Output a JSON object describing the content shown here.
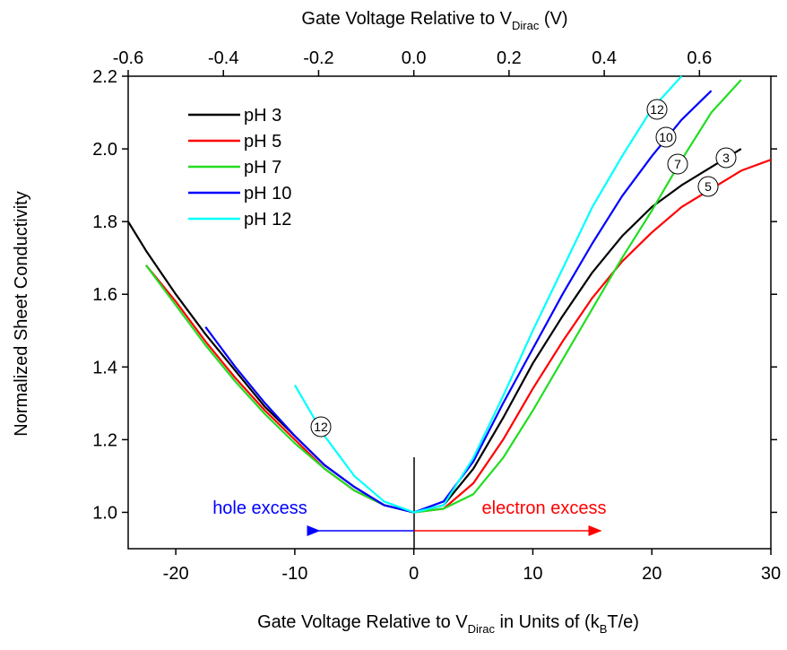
{
  "chart_data": {
    "type": "line",
    "x_label": [
      "Gate Voltage Relative to V",
      "Dirac",
      " in Units of (k",
      "B",
      "T/e)"
    ],
    "x2_label": [
      "Gate Voltage Relative to V",
      "Dirac",
      " (V)"
    ],
    "y_label": "Normalized Sheet Conductivity",
    "x": [
      -24,
      -22.5,
      -20,
      -17.5,
      -15,
      -12.5,
      -10,
      -7.5,
      -5,
      -2.5,
      0,
      2.5,
      5,
      7.5,
      10,
      12.5,
      15,
      17.5,
      20,
      22.5,
      25,
      27.5,
      30
    ],
    "series": [
      {
        "name": "pH 3",
        "color": "#000000",
        "values": [
          1.8,
          1.72,
          1.6,
          1.49,
          1.39,
          1.29,
          1.21,
          1.13,
          1.07,
          1.02,
          1.0,
          1.02,
          1.12,
          1.26,
          1.41,
          1.54,
          1.66,
          1.76,
          1.84,
          1.9,
          1.95,
          2.0,
          null
        ]
      },
      {
        "name": "pH 5",
        "color": "#ff0000",
        "values": [
          null,
          1.68,
          1.58,
          1.47,
          1.37,
          1.28,
          1.2,
          1.12,
          1.06,
          1.02,
          1.0,
          1.01,
          1.08,
          1.2,
          1.34,
          1.47,
          1.59,
          1.69,
          1.77,
          1.84,
          1.89,
          1.94,
          1.97
        ]
      },
      {
        "name": "pH 7",
        "color": "#22dd22",
        "values": [
          null,
          1.68,
          1.57,
          1.46,
          1.36,
          1.27,
          1.19,
          1.12,
          1.06,
          1.02,
          1.0,
          1.01,
          1.05,
          1.15,
          1.28,
          1.42,
          1.56,
          1.7,
          1.83,
          1.97,
          2.1,
          2.19,
          null
        ]
      },
      {
        "name": "pH 10",
        "color": "#0000ff",
        "values": [
          null,
          null,
          null,
          1.51,
          1.4,
          1.3,
          1.21,
          1.13,
          1.07,
          1.02,
          1.0,
          1.03,
          1.14,
          1.3,
          1.45,
          1.6,
          1.74,
          1.87,
          1.98,
          2.08,
          2.16,
          null,
          null
        ]
      },
      {
        "name": "pH 12",
        "color": "#00ffff",
        "values": [
          null,
          null,
          null,
          null,
          null,
          null,
          1.35,
          1.21,
          1.1,
          1.03,
          1.0,
          1.02,
          1.15,
          1.32,
          1.5,
          1.67,
          1.84,
          1.98,
          2.11,
          2.2,
          null,
          null,
          null
        ]
      }
    ],
    "xlim": [
      -24,
      30
    ],
    "xticks": [
      -20,
      -10,
      0,
      10,
      20,
      30
    ],
    "x2lim": [
      -0.6,
      0.75
    ],
    "x2ticks": [
      -0.6,
      -0.4,
      -0.2,
      {
        "value": 0,
        "label": "0.0"
      },
      0.2,
      0.4,
      0.6
    ],
    "ylim": [
      0.9,
      2.2
    ],
    "yticks": [
      {
        "value": 1,
        "label": "1.0"
      },
      1.2,
      1.4,
      1.6,
      1.8,
      {
        "value": 2,
        "label": "2.0"
      },
      2.2
    ],
    "legend": "top-left",
    "annotations": [
      "12",
      "10",
      "7",
      "3",
      "5",
      "12",
      "hole excess",
      "electron excess"
    ]
  }
}
